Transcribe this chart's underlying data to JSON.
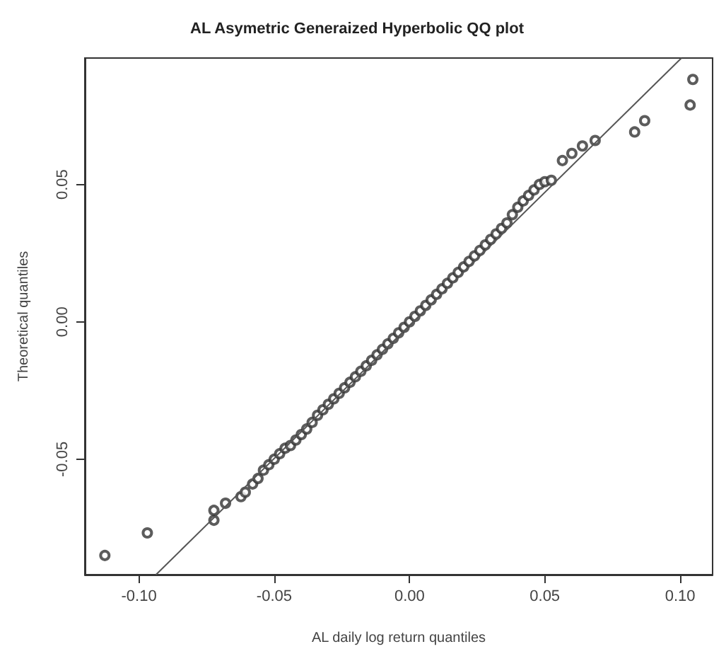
{
  "chart_data": {
    "type": "scatter",
    "title": "AL Asymetric Generaized Hyperbolic QQ plot",
    "xlabel": "AL daily log return quantiles",
    "ylabel": "Theoretical quantiles",
    "xlim": [
      -0.12,
      0.112
    ],
    "ylim": [
      -0.092,
      0.096
    ],
    "xticks": [
      {
        "value": -0.1,
        "label": "-0.10"
      },
      {
        "value": -0.05,
        "label": "-0.05"
      },
      {
        "value": 0,
        "label": "0.00"
      },
      {
        "value": 0.05,
        "label": "0.05"
      },
      {
        "value": 0.1,
        "label": "0.10"
      }
    ],
    "yticks": [
      {
        "value": -0.05,
        "label": "-0.05"
      },
      {
        "value": 0,
        "label": "0.00"
      },
      {
        "value": 0.05,
        "label": "0.05"
      }
    ],
    "marker": "circle",
    "series": [
      {
        "color": "#333333",
        "x": [
          -0.1126,
          -0.0969,
          -0.0723,
          -0.0723,
          -0.068,
          -0.0623,
          -0.0607,
          -0.058,
          -0.056,
          -0.054,
          -0.052,
          -0.05,
          -0.048,
          -0.046,
          -0.044,
          -0.042,
          -0.04,
          -0.038,
          -0.036,
          -0.034,
          -0.032,
          -0.03,
          -0.028,
          -0.026,
          -0.024,
          -0.022,
          -0.02,
          -0.018,
          -0.016,
          -0.014,
          -0.012,
          -0.01,
          -0.008,
          -0.006,
          -0.004,
          -0.002,
          0,
          0.002,
          0.004,
          0.006,
          0.008,
          0.01,
          0.012,
          0.014,
          0.016,
          0.018,
          0.02,
          0.022,
          0.024,
          0.026,
          0.028,
          0.03,
          0.032,
          0.034,
          0.036,
          0.038,
          0.04,
          0.042,
          0.044,
          0.046,
          0.048,
          0.05,
          0.0524,
          0.0565,
          0.06,
          0.0639,
          0.0686,
          0.0832,
          0.0869,
          0.1037,
          0.1047
        ],
        "values": [
          -0.085,
          -0.0768,
          -0.0722,
          -0.0686,
          -0.066,
          -0.0636,
          -0.062,
          -0.059,
          -0.057,
          -0.054,
          -0.052,
          -0.05,
          -0.048,
          -0.046,
          -0.045,
          -0.043,
          -0.041,
          -0.039,
          -0.0366,
          -0.034,
          -0.032,
          -0.03,
          -0.028,
          -0.026,
          -0.024,
          -0.022,
          -0.02,
          -0.018,
          -0.016,
          -0.014,
          -0.012,
          -0.01,
          -0.008,
          -0.006,
          -0.004,
          -0.002,
          0.0,
          0.002,
          0.004,
          0.006,
          0.008,
          0.01,
          0.012,
          0.014,
          0.016,
          0.018,
          0.02,
          0.022,
          0.024,
          0.026,
          0.028,
          0.03,
          0.032,
          0.034,
          0.036,
          0.039,
          0.0417,
          0.044,
          0.046,
          0.048,
          0.05,
          0.051,
          0.0515,
          0.0587,
          0.0613,
          0.064,
          0.066,
          0.0691,
          0.0732,
          0.0789,
          0.0882
        ]
      },
      {
        "type": "line",
        "color": "#555555",
        "marker": "none",
        "x": [
          -0.0937,
          0.1005
        ],
        "values": [
          -0.092,
          0.096
        ]
      }
    ]
  }
}
